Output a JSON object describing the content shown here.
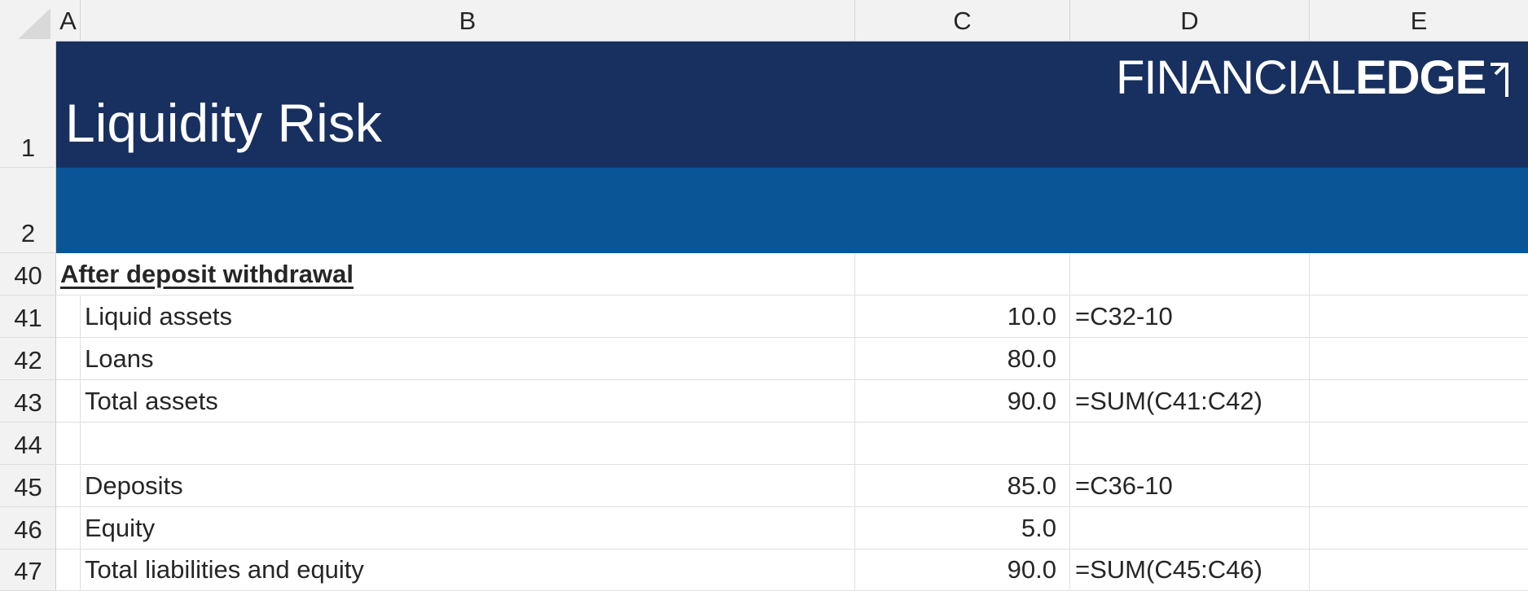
{
  "columns": [
    "A",
    "B",
    "C",
    "D",
    "E"
  ],
  "header": {
    "title": "Liquidity Risk",
    "logo_light": "FINANCIAL",
    "logo_bold": "EDGE"
  },
  "header_rows": [
    "1",
    "2"
  ],
  "colors": {
    "banner_dark": "#18305f",
    "banner_blue": "#0a5596"
  },
  "section_heading": "After deposit withdrawal",
  "rows": [
    {
      "num": "40",
      "label": "",
      "value": "",
      "formula": ""
    },
    {
      "num": "41",
      "label": "Liquid assets",
      "value": "10.0",
      "formula": "=C32-10"
    },
    {
      "num": "42",
      "label": "Loans",
      "value": "80.0",
      "formula": ""
    },
    {
      "num": "43",
      "label": "Total assets",
      "value": "90.0",
      "formula": "=SUM(C41:C42)"
    },
    {
      "num": "44",
      "label": "",
      "value": "",
      "formula": ""
    },
    {
      "num": "45",
      "label": "Deposits",
      "value": "85.0",
      "formula": "=C36-10"
    },
    {
      "num": "46",
      "label": "Equity",
      "value": "5.0",
      "formula": ""
    },
    {
      "num": "47",
      "label": "Total liabilities and equity",
      "value": "90.0",
      "formula": "=SUM(C45:C46)"
    }
  ]
}
